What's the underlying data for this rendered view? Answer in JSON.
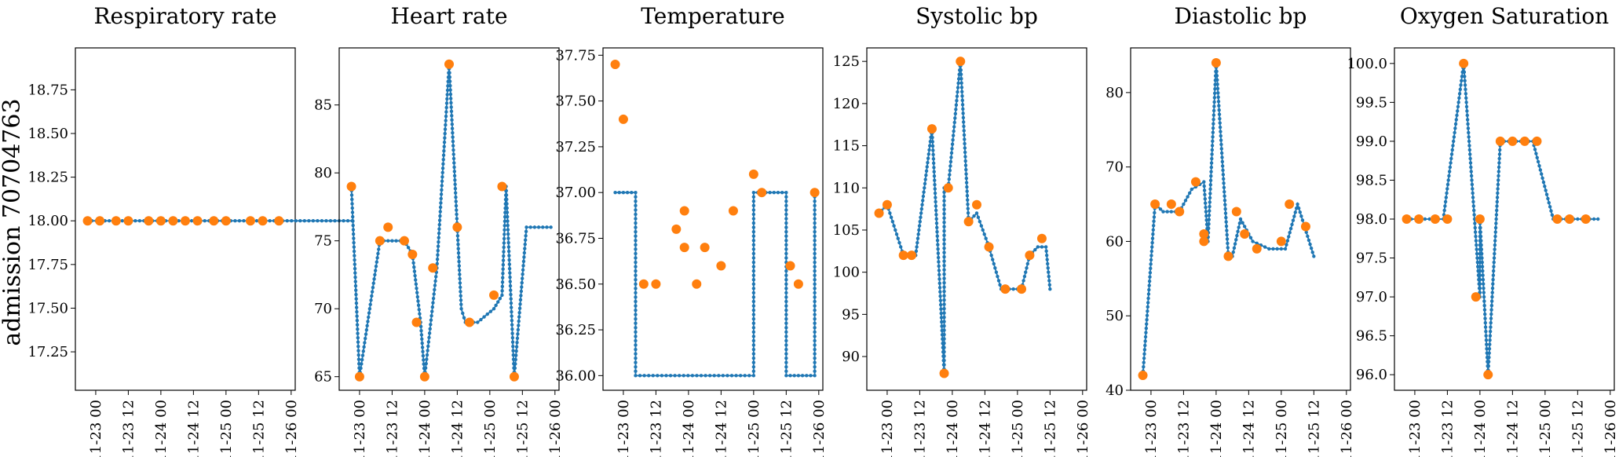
{
  "figure": {
    "row_label": "admission 70704763"
  },
  "colors": {
    "line": "#1f77b4",
    "marker": "#ff7f0e"
  },
  "chart_data": [
    {
      "type": "line",
      "title": "Respiratory rate",
      "x_ticks": [
        "11-23 00",
        "11-23 12",
        "11-24 00",
        "11-24 12",
        "11-25 00",
        "11-25 12",
        "11-26 00"
      ],
      "y_ticks": [
        "17.25",
        "17.50",
        "17.75",
        "18.00",
        "18.25",
        "18.50",
        "18.75"
      ],
      "ylim": [
        17.03,
        18.99
      ],
      "series_line": {
        "x": [
          -2,
          63
        ],
        "y": [
          18.0,
          18.0
        ]
      },
      "series_markers": {
        "x": [
          -2,
          1,
          5,
          8,
          13,
          16,
          19,
          22,
          25,
          29,
          32,
          38,
          41,
          45
        ],
        "y": [
          18,
          18,
          18,
          18,
          18,
          18,
          18,
          18,
          18,
          18,
          18,
          18,
          18,
          18
        ]
      }
    },
    {
      "type": "line",
      "title": "Heart rate",
      "x_ticks": [
        "11-23 00",
        "11-23 12",
        "11-24 00",
        "11-24 12",
        "11-25 00",
        "11-25 12",
        "11-26 00"
      ],
      "y_ticks": [
        "65",
        "70",
        "75",
        "80",
        "85"
      ],
      "ylim": [
        64.0,
        89.2
      ],
      "series_line": {
        "x": [
          -2,
          0,
          5,
          8,
          11,
          13,
          15,
          16,
          19,
          22,
          24,
          25,
          26,
          29,
          33,
          35,
          36,
          38,
          41,
          43,
          45,
          46,
          47
        ],
        "y": [
          79,
          65,
          75,
          75,
          75,
          74,
          69,
          65,
          73,
          88,
          76,
          70,
          69,
          69,
          70,
          71,
          79,
          65,
          76,
          76,
          76,
          76,
          76
        ]
      },
      "series_markers": {
        "x": [
          -2,
          0,
          5,
          7,
          11,
          13,
          14,
          16,
          18,
          22,
          24,
          27,
          33,
          35,
          38
        ],
        "y": [
          79,
          65,
          75,
          76,
          75,
          74,
          69,
          65,
          73,
          88,
          76,
          69,
          71,
          79,
          65
        ]
      }
    },
    {
      "type": "line",
      "title": "Temperature",
      "x_ticks": [
        "11-23 00",
        "11-23 12",
        "11-24 00",
        "11-24 12",
        "11-25 00",
        "11-25 12",
        "11-26 00"
      ],
      "y_ticks": [
        "36.00",
        "36.25",
        "36.50",
        "36.75",
        "37.00",
        "37.25",
        "37.50",
        "37.75"
      ],
      "ylim": [
        35.92,
        37.79
      ],
      "series_line": {
        "x": [
          -2,
          3,
          3,
          32,
          32,
          40,
          40,
          47,
          47
        ],
        "y": [
          37.0,
          37.0,
          36.0,
          36.0,
          37.0,
          37.0,
          36.0,
          36.0,
          37.0
        ]
      },
      "series_markers": {
        "x": [
          -2,
          0,
          5,
          8,
          13,
          15,
          15,
          18,
          20,
          24,
          27,
          32,
          34,
          41,
          43,
          47
        ],
        "y": [
          37.7,
          37.4,
          36.5,
          36.5,
          36.8,
          36.9,
          36.7,
          36.5,
          36.7,
          36.6,
          36.9,
          37.1,
          37.0,
          36.6,
          36.5,
          37.0
        ]
      }
    },
    {
      "type": "line",
      "title": "Systolic bp",
      "x_ticks": [
        "11-23 00",
        "11-23 12",
        "11-24 00",
        "11-24 12",
        "11-25 00",
        "11-25 12",
        "11-26 00"
      ],
      "y_ticks": [
        "90",
        "95",
        "100",
        "105",
        "110",
        "115",
        "120",
        "125"
      ],
      "ylim": [
        86.0,
        126.6
      ],
      "series_line": {
        "x": [
          -2,
          0,
          4,
          7,
          11,
          14,
          14,
          15,
          18,
          20,
          22,
          25,
          28,
          30,
          33,
          35,
          37,
          39,
          40
        ],
        "y": [
          107,
          108,
          102,
          102,
          117,
          88,
          110,
          110,
          125,
          106,
          107,
          103,
          98,
          98,
          98,
          102,
          103,
          103,
          98
        ]
      },
      "series_markers": {
        "x": [
          -2,
          0,
          4,
          6,
          11,
          14,
          15,
          18,
          20,
          22,
          25,
          29,
          33,
          35,
          38
        ],
        "y": [
          107,
          108,
          102,
          102,
          117,
          88,
          110,
          125,
          106,
          108,
          103,
          98,
          98,
          102,
          104
        ]
      }
    },
    {
      "type": "line",
      "title": "Diastolic bp",
      "x_ticks": [
        "11-23 00",
        "11-23 12",
        "11-24 00",
        "11-24 12",
        "11-25 00",
        "11-25 12",
        "11-26 00"
      ],
      "y_ticks": [
        "40",
        "50",
        "60",
        "70",
        "80"
      ],
      "ylim": [
        40.0,
        86.0
      ],
      "series_line": {
        "x": [
          -2,
          1,
          3,
          7,
          10,
          13,
          14,
          16,
          19,
          20,
          22,
          25,
          29,
          33,
          36,
          40
        ],
        "y": [
          42,
          65,
          64,
          64,
          67,
          68,
          60,
          84,
          58,
          58,
          63,
          60,
          59,
          59,
          65,
          58
        ]
      },
      "series_markers": {
        "x": [
          -2,
          1,
          5,
          7,
          11,
          13,
          13,
          16,
          19,
          21,
          23,
          26,
          32,
          34,
          38
        ],
        "y": [
          42,
          65,
          65,
          64,
          68,
          61,
          60,
          84,
          58,
          64,
          61,
          59,
          60,
          65,
          62
        ]
      }
    },
    {
      "type": "line",
      "title": "Oxygen Saturation",
      "x_ticks": [
        "11-23 00",
        "11-23 12",
        "11-24 00",
        "11-24 12",
        "11-25 00",
        "11-25 12",
        "11-26 00"
      ],
      "y_ticks": [
        "96.0",
        "96.5",
        "97.0",
        "97.5",
        "98.0",
        "98.5",
        "99.0",
        "99.5",
        "100.0"
      ],
      "ylim": [
        95.8,
        100.2
      ],
      "series_line": {
        "x": [
          -2,
          7,
          12,
          16,
          16,
          18,
          21,
          26,
          29,
          34,
          38,
          40,
          45
        ],
        "y": [
          98,
          98,
          100,
          97,
          98,
          96,
          99,
          99,
          99,
          98,
          98,
          98,
          98
        ]
      },
      "series_markers": {
        "x": [
          -2,
          1,
          5,
          8,
          12,
          15,
          16,
          18,
          21,
          24,
          27,
          30,
          35,
          38,
          42
        ],
        "y": [
          98,
          98,
          98,
          98,
          100,
          97,
          98,
          96,
          99,
          99,
          99,
          99,
          98,
          98,
          98
        ]
      }
    }
  ]
}
